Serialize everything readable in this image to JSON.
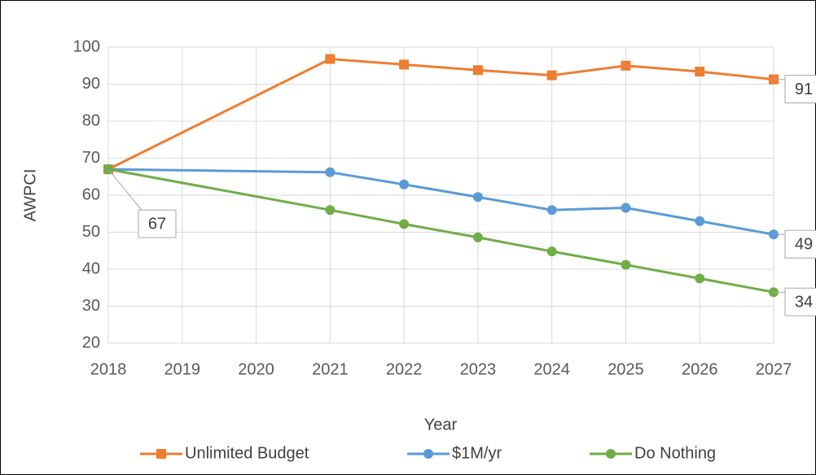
{
  "chart_data": {
    "type": "line",
    "x_label": "Year",
    "y_label": "AWPCI",
    "x": [
      2018,
      2021,
      2022,
      2023,
      2024,
      2025,
      2026,
      2027
    ],
    "xlim": [
      2018,
      2027
    ],
    "xticks": [
      2018,
      2019,
      2020,
      2021,
      2022,
      2023,
      2024,
      2025,
      2026,
      2027
    ],
    "ylim": [
      20,
      100
    ],
    "yticks": [
      20,
      30,
      40,
      50,
      60,
      70,
      80,
      90,
      100
    ],
    "grid": true,
    "legend": "bottom",
    "series": [
      {
        "name": "Unlimited Budget",
        "color": "#ed7d31",
        "marker": "square",
        "values": [
          67,
          96.8,
          95.3,
          93.8,
          92.4,
          95,
          93.4,
          91.3
        ],
        "value_labels": [
          null,
          null,
          null,
          null,
          null,
          null,
          null,
          "91"
        ]
      },
      {
        "name": "$1M/yr",
        "color": "#5b9bd5",
        "marker": "circle",
        "values": [
          67,
          66.2,
          62.9,
          59.5,
          56,
          56.6,
          53,
          49.4
        ],
        "value_labels": [
          null,
          null,
          null,
          null,
          null,
          null,
          null,
          "49"
        ]
      },
      {
        "name": "Do Nothing",
        "color": "#70ad47",
        "marker": "circle",
        "values": [
          67,
          56,
          52.2,
          48.6,
          44.8,
          41.2,
          37.5,
          33.8
        ],
        "value_labels": [
          "67",
          null,
          null,
          null,
          null,
          null,
          null,
          "34"
        ]
      }
    ]
  }
}
